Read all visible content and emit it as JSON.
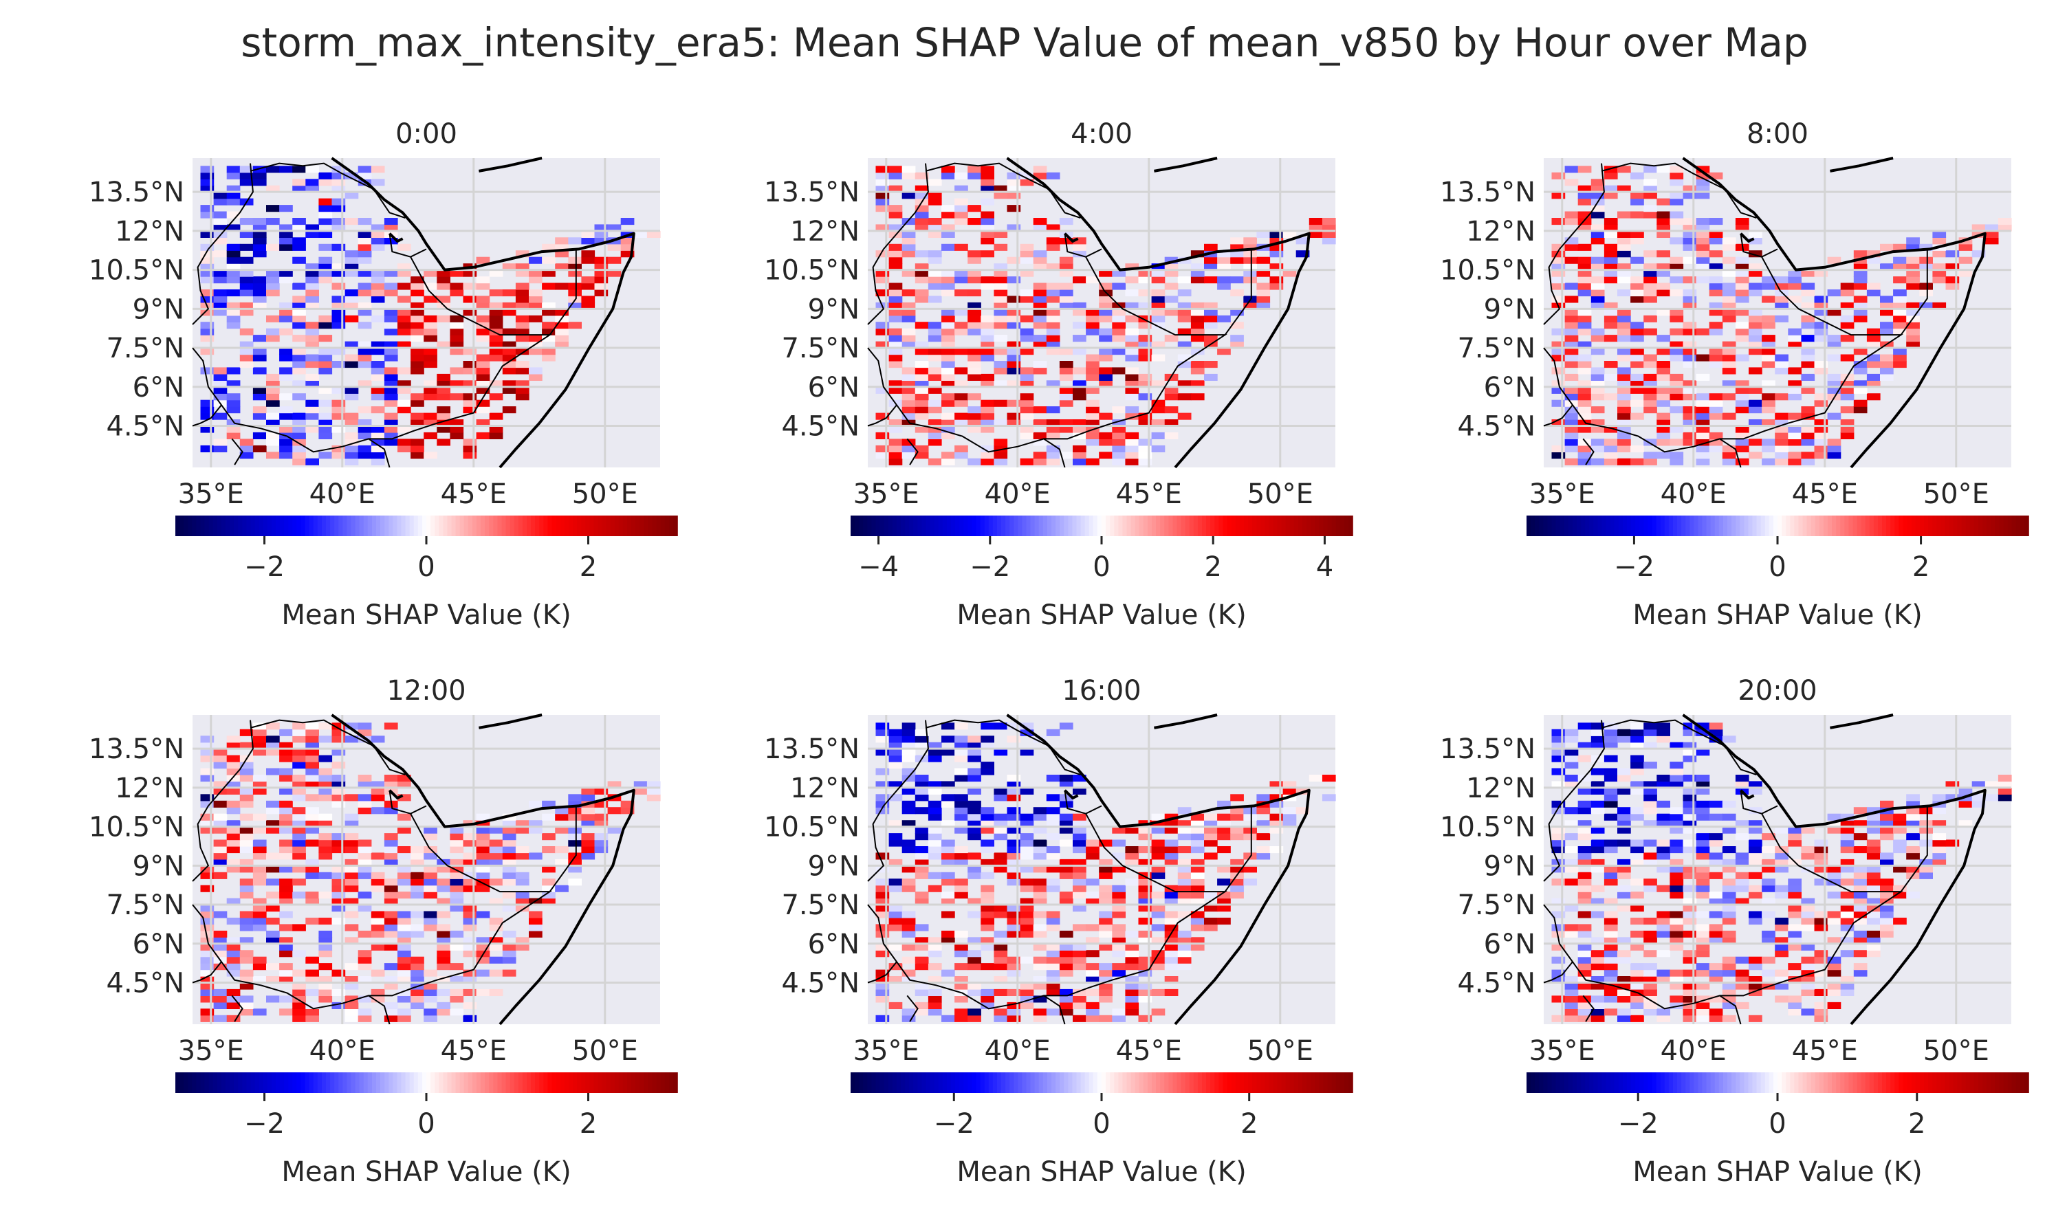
{
  "title": "storm_max_intensity_era5: Mean SHAP Value of mean_v850 by Hour over Map",
  "chart_data": {
    "type": "heatmap",
    "title": "storm_max_intensity_era5: Mean SHAP Value of mean_v850 by Hour over Map",
    "grid": true,
    "colormap": "seismic",
    "x_ticks": [
      "35°E",
      "40°E",
      "45°E",
      "50°E"
    ],
    "x_tick_values": [
      35,
      40,
      45,
      50
    ],
    "y_ticks": [
      "13.5°N",
      "12°N",
      "10.5°N",
      "9°N",
      "7.5°N",
      "6°N",
      "4.5°N"
    ],
    "y_tick_values": [
      13.5,
      12,
      10.5,
      9,
      7.5,
      6,
      4.5
    ],
    "xlim": [
      34.3,
      52.1
    ],
    "ylim": [
      2.9,
      14.8
    ],
    "colorbar_label": "Mean SHAP Value (K)",
    "panels": [
      {
        "title": "0:00",
        "vlim": [
          -3.1,
          3.1
        ],
        "cb_ticks": [
          -2,
          0,
          2
        ],
        "cb_tick_labels": [
          "−2",
          "0",
          "2"
        ]
      },
      {
        "title": "4:00",
        "vlim": [
          -4.5,
          4.5
        ],
        "cb_ticks": [
          -4,
          -2,
          0,
          2,
          4
        ],
        "cb_tick_labels": [
          "−4",
          "−2",
          "0",
          "2",
          "4"
        ]
      },
      {
        "title": "8:00",
        "vlim": [
          -3.5,
          3.5
        ],
        "cb_ticks": [
          -2,
          0,
          2
        ],
        "cb_tick_labels": [
          "−2",
          "0",
          "2"
        ]
      },
      {
        "title": "12:00",
        "vlim": [
          -3.1,
          3.1
        ],
        "cb_ticks": [
          -2,
          0,
          2
        ],
        "cb_tick_labels": [
          "−2",
          "0",
          "2"
        ]
      },
      {
        "title": "16:00",
        "vlim": [
          -3.4,
          3.4
        ],
        "cb_ticks": [
          -2,
          0,
          2
        ],
        "cb_tick_labels": [
          "−2",
          "0",
          "2"
        ]
      },
      {
        "title": "20:00",
        "vlim": [
          -3.6,
          3.6
        ],
        "cb_ticks": [
          -2,
          0,
          2
        ],
        "cb_tick_labels": [
          "−2",
          "0",
          "2"
        ]
      }
    ]
  }
}
